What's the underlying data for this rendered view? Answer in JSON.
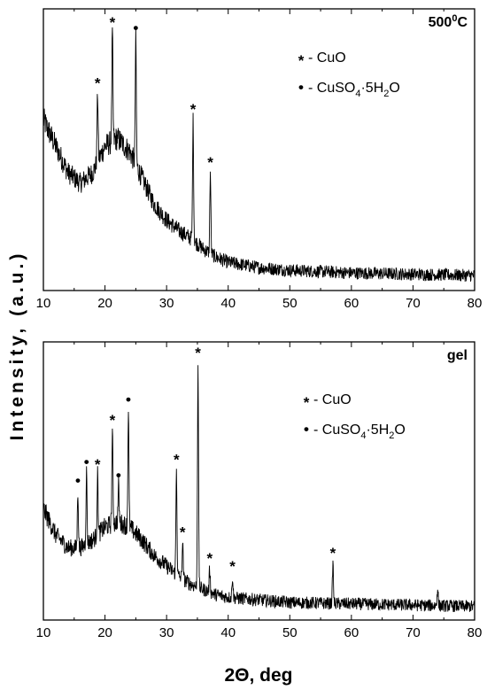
{
  "chart_data": [
    {
      "type": "line",
      "panel_label": "500",
      "panel_label_sup": "0",
      "panel_label_suffix": "C",
      "xlim": [
        10,
        80
      ],
      "xticks": [
        "10",
        "20",
        "30",
        "40",
        "50",
        "60",
        "70",
        "80"
      ],
      "legend": [
        {
          "symbol": "*",
          "text": " - CuO"
        },
        {
          "symbol": "•",
          "text": " - CuSO",
          "sub": "4",
          "after": "·5H",
          "sub2": "2",
          "tail": "O"
        }
      ],
      "baseline": [
        [
          10,
          0.62
        ],
        [
          12,
          0.52
        ],
        [
          14,
          0.42
        ],
        [
          16,
          0.38
        ],
        [
          18,
          0.42
        ],
        [
          20,
          0.52
        ],
        [
          22,
          0.55
        ],
        [
          24,
          0.5
        ],
        [
          26,
          0.4
        ],
        [
          28,
          0.3
        ],
        [
          30,
          0.24
        ],
        [
          32,
          0.2
        ],
        [
          34,
          0.17
        ],
        [
          36,
          0.13
        ],
        [
          38,
          0.1
        ],
        [
          40,
          0.08
        ],
        [
          45,
          0.06
        ],
        [
          50,
          0.05
        ],
        [
          60,
          0.04
        ],
        [
          70,
          0.035
        ],
        [
          80,
          0.03
        ]
      ],
      "peaks": [
        {
          "x": 18.8,
          "y": 0.72,
          "marker": "*"
        },
        {
          "x": 21.2,
          "y": 0.95,
          "marker": "*"
        },
        {
          "x": 25.0,
          "y": 0.93,
          "marker": "•"
        },
        {
          "x": 34.3,
          "y": 0.62,
          "marker": "*"
        },
        {
          "x": 37.1,
          "y": 0.42,
          "marker": "*"
        }
      ]
    },
    {
      "type": "line",
      "panel_label": "gel",
      "xlim": [
        10,
        80
      ],
      "xticks": [
        "10",
        "20",
        "30",
        "40",
        "50",
        "60",
        "70",
        "80"
      ],
      "legend": [
        {
          "symbol": "*",
          "text": " - CuO"
        },
        {
          "symbol": "•",
          "text": " - CuSO",
          "sub": "4",
          "after": "·5H",
          "sub2": "2",
          "tail": "O"
        }
      ],
      "baseline": [
        [
          10,
          0.4
        ],
        [
          12,
          0.3
        ],
        [
          14,
          0.25
        ],
        [
          16,
          0.25
        ],
        [
          18,
          0.28
        ],
        [
          20,
          0.33
        ],
        [
          22,
          0.35
        ],
        [
          24,
          0.33
        ],
        [
          26,
          0.28
        ],
        [
          28,
          0.22
        ],
        [
          30,
          0.18
        ],
        [
          32,
          0.14
        ],
        [
          34,
          0.11
        ],
        [
          36,
          0.09
        ],
        [
          38,
          0.07
        ],
        [
          40,
          0.06
        ],
        [
          45,
          0.05
        ],
        [
          50,
          0.04
        ],
        [
          60,
          0.035
        ],
        [
          70,
          0.03
        ],
        [
          80,
          0.025
        ]
      ],
      "peaks": [
        {
          "x": 15.6,
          "y": 0.47,
          "marker": "•"
        },
        {
          "x": 17.0,
          "y": 0.54,
          "marker": "•"
        },
        {
          "x": 18.8,
          "y": 0.53,
          "marker": "*"
        },
        {
          "x": 21.2,
          "y": 0.7,
          "marker": "*"
        },
        {
          "x": 22.2,
          "y": 0.49,
          "marker": "•"
        },
        {
          "x": 23.8,
          "y": 0.78,
          "marker": "•"
        },
        {
          "x": 31.6,
          "y": 0.55,
          "marker": "*"
        },
        {
          "x": 32.6,
          "y": 0.27,
          "marker": "*"
        },
        {
          "x": 35.1,
          "y": 0.96,
          "marker": "*"
        },
        {
          "x": 37.0,
          "y": 0.17,
          "marker": "*"
        },
        {
          "x": 40.7,
          "y": 0.14,
          "marker": "*"
        },
        {
          "x": 57.0,
          "y": 0.19,
          "marker": "*"
        },
        {
          "x": 74.0,
          "y": 0.1,
          "marker": ""
        }
      ]
    }
  ],
  "xlabel": "2Θ, deg",
  "ylabel": "Intensity, (a.u.)"
}
